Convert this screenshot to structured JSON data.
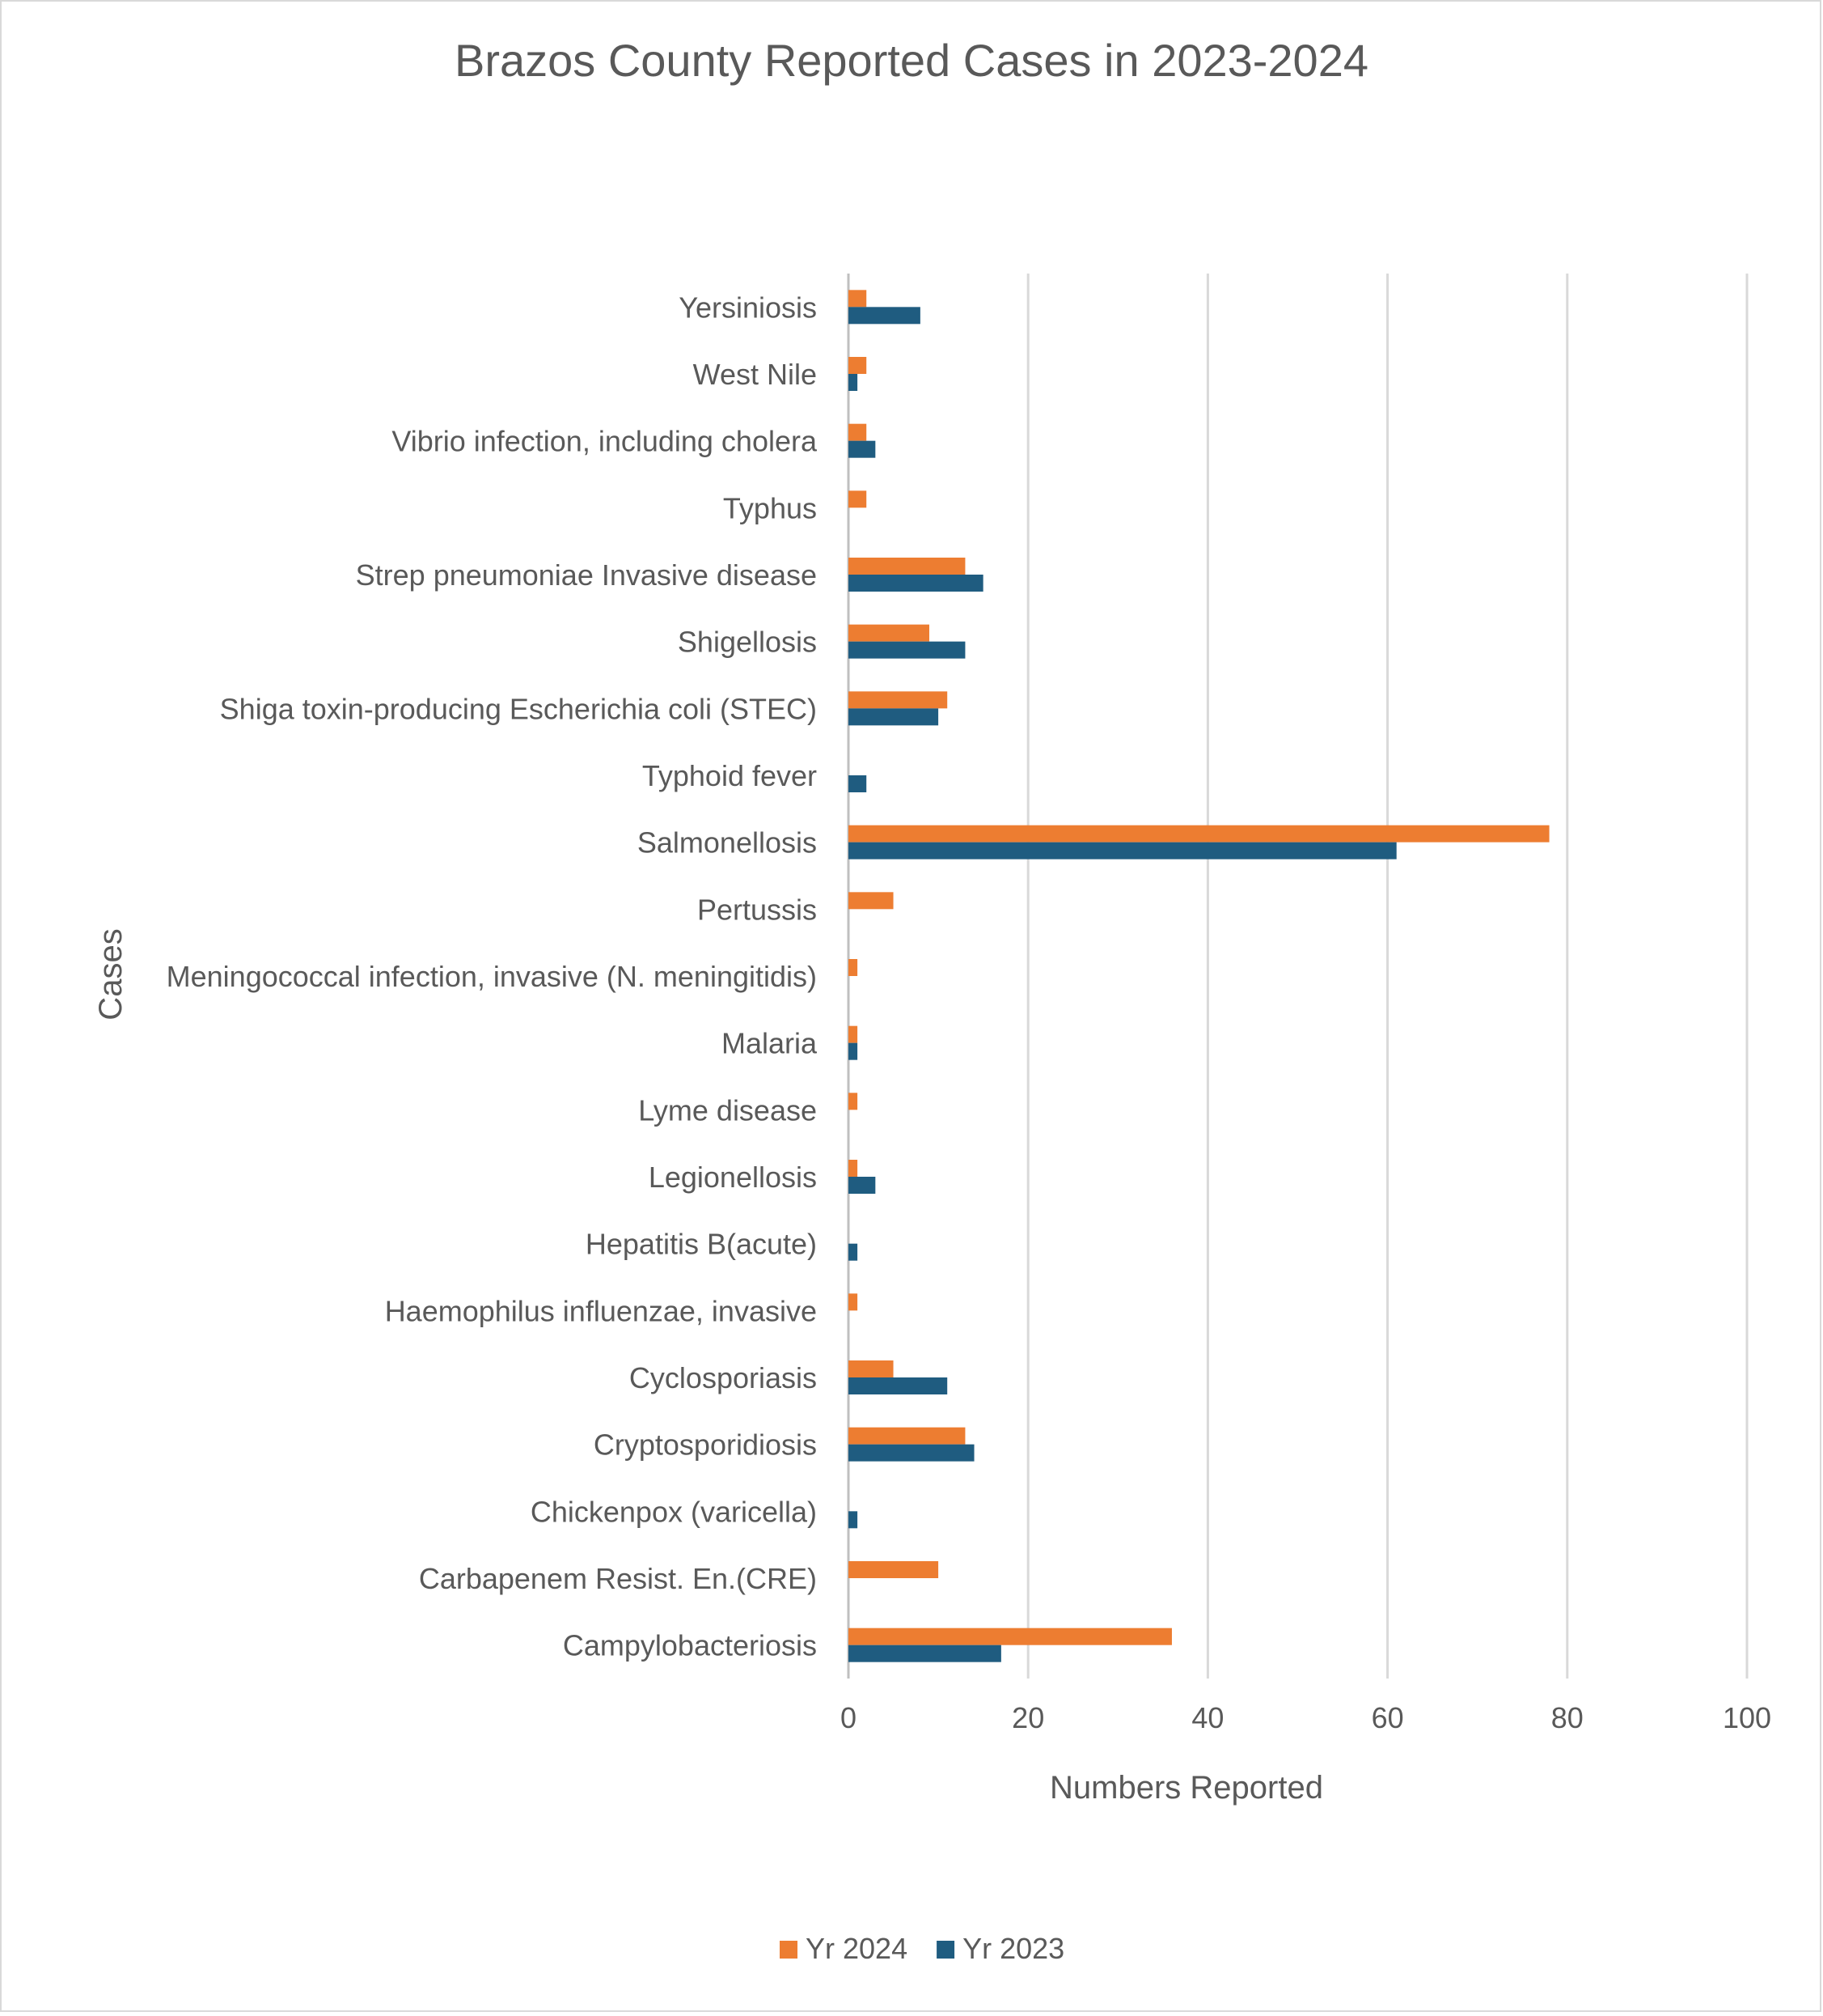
{
  "chart_data": {
    "type": "bar",
    "orientation": "horizontal",
    "title": "Brazos County Reported Cases in 2023-2024",
    "xlabel": "Numbers Reported",
    "ylabel": "Cases",
    "xlim": [
      0,
      100
    ],
    "xticks": [
      "0",
      "20",
      "40",
      "60",
      "80",
      "100"
    ],
    "grid": "vertical gridlines",
    "legend_position": "bottom",
    "categories": [
      "Yersiniosis",
      "West Nile",
      "Vibrio infection, including cholera",
      "Typhus",
      "Strep pneumoniae Invasive disease",
      "Shigellosis",
      "Shiga toxin-producing Escherichia coli  (STEC)",
      "Typhoid fever",
      "Salmonellosis",
      "Pertussis",
      "Meningococcal infection, invasive (N. meningitidis)",
      "Malaria",
      "Lyme disease",
      "Legionellosis",
      "Hepatitis B(acute)",
      "Haemophilus influenzae, invasive",
      "Cyclosporiasis",
      "Cryptosporidiosis",
      "Chickenpox (varicella)",
      "Carbapenem Resist. En.(CRE)",
      "Campylobacteriosis"
    ],
    "series": [
      {
        "name": "Yr 2024",
        "color": "#ED7D31",
        "values": [
          2,
          2,
          2,
          2,
          13,
          9,
          11,
          0,
          78,
          5,
          1,
          1,
          1,
          1,
          0,
          1,
          5,
          13,
          0,
          10,
          36
        ]
      },
      {
        "name": "Yr 2023",
        "color": "#1F5C80",
        "values": [
          8,
          1,
          3,
          0,
          15,
          13,
          10,
          2,
          61,
          0,
          0,
          1,
          0,
          3,
          1,
          0,
          11,
          14,
          1,
          0,
          17
        ]
      }
    ]
  }
}
